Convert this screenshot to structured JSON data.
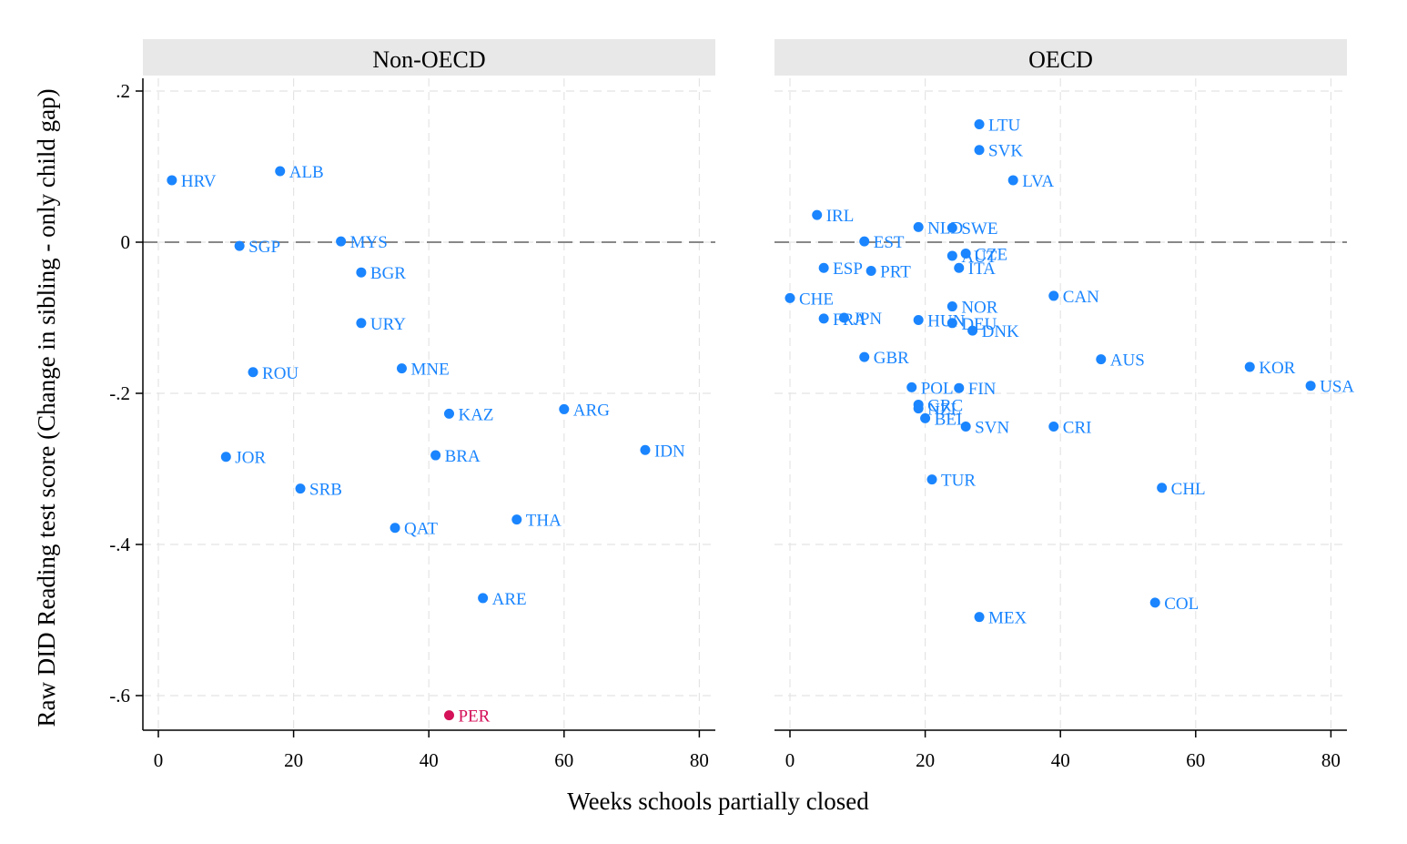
{
  "chart_data": {
    "type": "scatter",
    "xlabel": "Weeks schools partially closed",
    "ylabel": "Raw DID Reading test score (Change in sibling - only child gap)",
    "xlim": [
      -2,
      82
    ],
    "ylim": [
      -0.645,
      0.22
    ],
    "xticks": [
      "0",
      "20",
      "40",
      "60",
      "80"
    ],
    "xtick_values": [
      0,
      20,
      40,
      60,
      80
    ],
    "yticks": [
      ".2",
      "0",
      "-.2",
      "-.4",
      "-.6"
    ],
    "ytick_values": [
      0.2,
      0,
      -0.2,
      -0.4,
      -0.6
    ],
    "grid": true,
    "reference_line_y": 0,
    "colors": {
      "default": "#1a85ff",
      "highlight": "#d41159",
      "strip": "#e8e8e8"
    },
    "panels": [
      {
        "title": "Non-OECD",
        "points": [
          {
            "label": "HRV",
            "x": 2,
            "y": 0.082
          },
          {
            "label": "ALB",
            "x": 18,
            "y": 0.094
          },
          {
            "label": "SGP",
            "x": 12,
            "y": -0.005
          },
          {
            "label": "MYS",
            "x": 27,
            "y": 0.001
          },
          {
            "label": "BGR",
            "x": 30,
            "y": -0.04
          },
          {
            "label": "URY",
            "x": 30,
            "y": -0.107
          },
          {
            "label": "ROU",
            "x": 14,
            "y": -0.172
          },
          {
            "label": "MNE",
            "x": 36,
            "y": -0.167
          },
          {
            "label": "KAZ",
            "x": 43,
            "y": -0.227
          },
          {
            "label": "ARG",
            "x": 60,
            "y": -0.221
          },
          {
            "label": "JOR",
            "x": 10,
            "y": -0.284
          },
          {
            "label": "BRA",
            "x": 41,
            "y": -0.282
          },
          {
            "label": "IDN",
            "x": 72,
            "y": -0.275
          },
          {
            "label": "SRB",
            "x": 21,
            "y": -0.326
          },
          {
            "label": "QAT",
            "x": 35,
            "y": -0.378
          },
          {
            "label": "THA",
            "x": 53,
            "y": -0.367
          },
          {
            "label": "ARE",
            "x": 48,
            "y": -0.471
          },
          {
            "label": "PER",
            "x": 43,
            "y": -0.626,
            "highlight": true
          }
        ]
      },
      {
        "title": "OECD",
        "points": [
          {
            "label": "LTU",
            "x": 28,
            "y": 0.156
          },
          {
            "label": "SVK",
            "x": 28,
            "y": 0.122
          },
          {
            "label": "LVA",
            "x": 33,
            "y": 0.082
          },
          {
            "label": "IRL",
            "x": 4,
            "y": 0.036
          },
          {
            "label": "NLD",
            "x": 19,
            "y": 0.02
          },
          {
            "label": "SWE",
            "x": 24,
            "y": 0.019
          },
          {
            "label": "EST",
            "x": 11,
            "y": 0.001
          },
          {
            "label": "CZE",
            "x": 26,
            "y": -0.015
          },
          {
            "label": "AUT",
            "x": 24,
            "y": -0.018
          },
          {
            "label": "ESP",
            "x": 5,
            "y": -0.034
          },
          {
            "label": "PRT",
            "x": 12,
            "y": -0.038
          },
          {
            "label": "ITA",
            "x": 25,
            "y": -0.034
          },
          {
            "label": "CHE",
            "x": 0,
            "y": -0.074
          },
          {
            "label": "CAN",
            "x": 39,
            "y": -0.071
          },
          {
            "label": "NOR",
            "x": 24,
            "y": -0.085
          },
          {
            "label": "FRA",
            "x": 5,
            "y": -0.101
          },
          {
            "label": "JPN",
            "x": 8,
            "y": -0.1
          },
          {
            "label": "HUN",
            "x": 19,
            "y": -0.103
          },
          {
            "label": "DEU",
            "x": 24,
            "y": -0.107
          },
          {
            "label": "DNK",
            "x": 27,
            "y": -0.117
          },
          {
            "label": "GBR",
            "x": 11,
            "y": -0.152
          },
          {
            "label": "AUS",
            "x": 46,
            "y": -0.155
          },
          {
            "label": "KOR",
            "x": 68,
            "y": -0.165
          },
          {
            "label": "USA",
            "x": 77,
            "y": -0.19
          },
          {
            "label": "POL",
            "x": 18,
            "y": -0.192
          },
          {
            "label": "FIN",
            "x": 25,
            "y": -0.193
          },
          {
            "label": "GRC",
            "x": 19,
            "y": -0.215
          },
          {
            "label": "NZL",
            "x": 19,
            "y": -0.22
          },
          {
            "label": "BEL",
            "x": 20,
            "y": -0.233
          },
          {
            "label": "SVN",
            "x": 26,
            "y": -0.244
          },
          {
            "label": "CRI",
            "x": 39,
            "y": -0.244
          },
          {
            "label": "TUR",
            "x": 21,
            "y": -0.314
          },
          {
            "label": "CHL",
            "x": 55,
            "y": -0.325
          },
          {
            "label": "COL",
            "x": 54,
            "y": -0.477
          },
          {
            "label": "MEX",
            "x": 28,
            "y": -0.496
          }
        ]
      }
    ]
  }
}
